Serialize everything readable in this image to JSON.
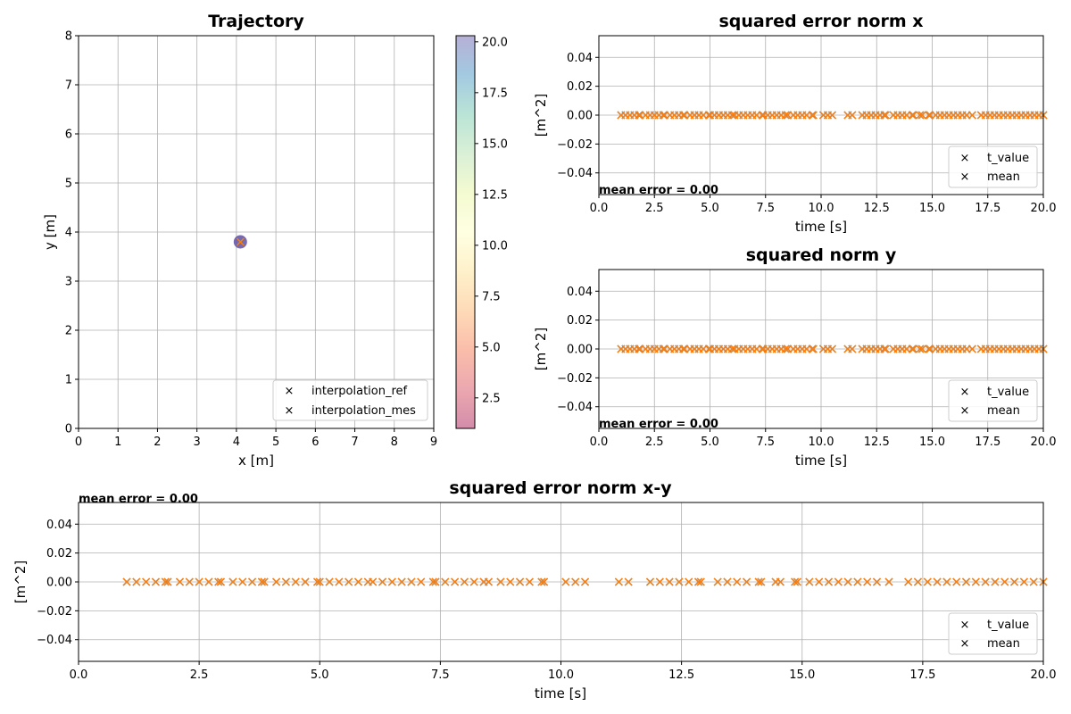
{
  "colors": {
    "ref": "#1f77b4",
    "mes": "#ff7f0e",
    "grid": "#b0b0b0",
    "point_fill": "#5e4fa2"
  },
  "chart_data": [
    {
      "id": "trajectory",
      "type": "scatter",
      "title": "Trajectory",
      "xlabel": "x [m]",
      "ylabel": "y [m]",
      "xlim": [
        0,
        9
      ],
      "ylim": [
        0,
        8
      ],
      "xticks": [
        "0",
        "1",
        "2",
        "3",
        "4",
        "5",
        "6",
        "7",
        "8",
        "9"
      ],
      "yticks": [
        "0",
        "1",
        "2",
        "3",
        "4",
        "5",
        "6",
        "7",
        "8"
      ],
      "grid": true,
      "legend_position": "lower-right",
      "series": [
        {
          "name": "interpolation_ref",
          "marker": "x",
          "points": [
            [
              4.1,
              3.8
            ]
          ]
        },
        {
          "name": "interpolation_mes",
          "marker": "x",
          "points": [
            [
              4.1,
              3.8
            ]
          ]
        }
      ],
      "colorbar": {
        "range": [
          1,
          20.3
        ],
        "ticks": [
          "2.5",
          "5.0",
          "7.5",
          "10.0",
          "12.5",
          "15.0",
          "17.5",
          "20.0"
        ],
        "colormap": "Spectral"
      }
    },
    {
      "id": "error_x",
      "type": "scatter",
      "title": "squared error norm  x",
      "xlabel": "time [s]",
      "ylabel": "[m^2]",
      "xlim": [
        0,
        20
      ],
      "ylim": [
        -0.055,
        0.055
      ],
      "xticks": [
        "0.0",
        "2.5",
        "5.0",
        "7.5",
        "10.0",
        "12.5",
        "15.0",
        "17.5",
        "20.0"
      ],
      "yticks": [
        "0.04",
        "0.02",
        "0.00",
        "−0.02",
        "−0.04"
      ],
      "grid": true,
      "legend_position": "lower-right",
      "annotation": "mean error = 0.00",
      "series_names": [
        "t_value",
        "mean"
      ]
    },
    {
      "id": "error_y",
      "type": "scatter",
      "title": "squared norm  y",
      "xlabel": "time [s]",
      "ylabel": "[m^2]",
      "xlim": [
        0,
        20
      ],
      "ylim": [
        -0.055,
        0.055
      ],
      "xticks": [
        "0.0",
        "2.5",
        "5.0",
        "7.5",
        "10.0",
        "12.5",
        "15.0",
        "17.5",
        "20.0"
      ],
      "yticks": [
        "0.04",
        "0.02",
        "0.00",
        "−0.02",
        "−0.04"
      ],
      "grid": true,
      "legend_position": "lower-right",
      "annotation": "mean error = 0.00",
      "series_names": [
        "t_value",
        "mean"
      ]
    },
    {
      "id": "error_xy",
      "type": "scatter",
      "title": "squared error norm  x-y",
      "xlabel": "time [s]",
      "ylabel": "[m^2]",
      "xlim": [
        0,
        20
      ],
      "ylim": [
        -0.055,
        0.055
      ],
      "xticks": [
        "0.0",
        "2.5",
        "5.0",
        "7.5",
        "10.0",
        "12.5",
        "15.0",
        "17.5",
        "20.0"
      ],
      "yticks": [
        "0.04",
        "0.02",
        "0.00",
        "−0.02",
        "−0.04"
      ],
      "grid": true,
      "legend_position": "lower-right",
      "annotation": "mean error = 0.00",
      "series_names": [
        "t_value",
        "mean"
      ]
    }
  ],
  "error_times": [
    1.0,
    1.2,
    1.4,
    1.6,
    1.8,
    1.85,
    2.1,
    2.3,
    2.5,
    2.7,
    2.9,
    2.95,
    3.2,
    3.4,
    3.6,
    3.8,
    3.85,
    4.1,
    4.3,
    4.5,
    4.7,
    4.95,
    5.0,
    5.2,
    5.4,
    5.6,
    5.8,
    6.0,
    6.1,
    6.3,
    6.5,
    6.7,
    6.9,
    7.1,
    7.35,
    7.4,
    7.6,
    7.8,
    8.0,
    8.2,
    8.4,
    8.5,
    8.75,
    8.95,
    9.15,
    9.35,
    9.6,
    9.65,
    10.1,
    10.3,
    10.5,
    11.2,
    11.4,
    11.85,
    12.05,
    12.25,
    12.45,
    12.65,
    12.85,
    12.9,
    13.25,
    13.45,
    13.65,
    13.85,
    14.1,
    14.15,
    14.45,
    14.55,
    14.85,
    14.9,
    15.15,
    15.35,
    15.55,
    15.75,
    15.95,
    16.15,
    16.35,
    16.55,
    16.8,
    17.2,
    17.4,
    17.6,
    17.8,
    18.0,
    18.2,
    18.4,
    18.6,
    18.8,
    19.0,
    19.2,
    19.4,
    19.6,
    19.8,
    20.0
  ],
  "error_value": 0.0
}
